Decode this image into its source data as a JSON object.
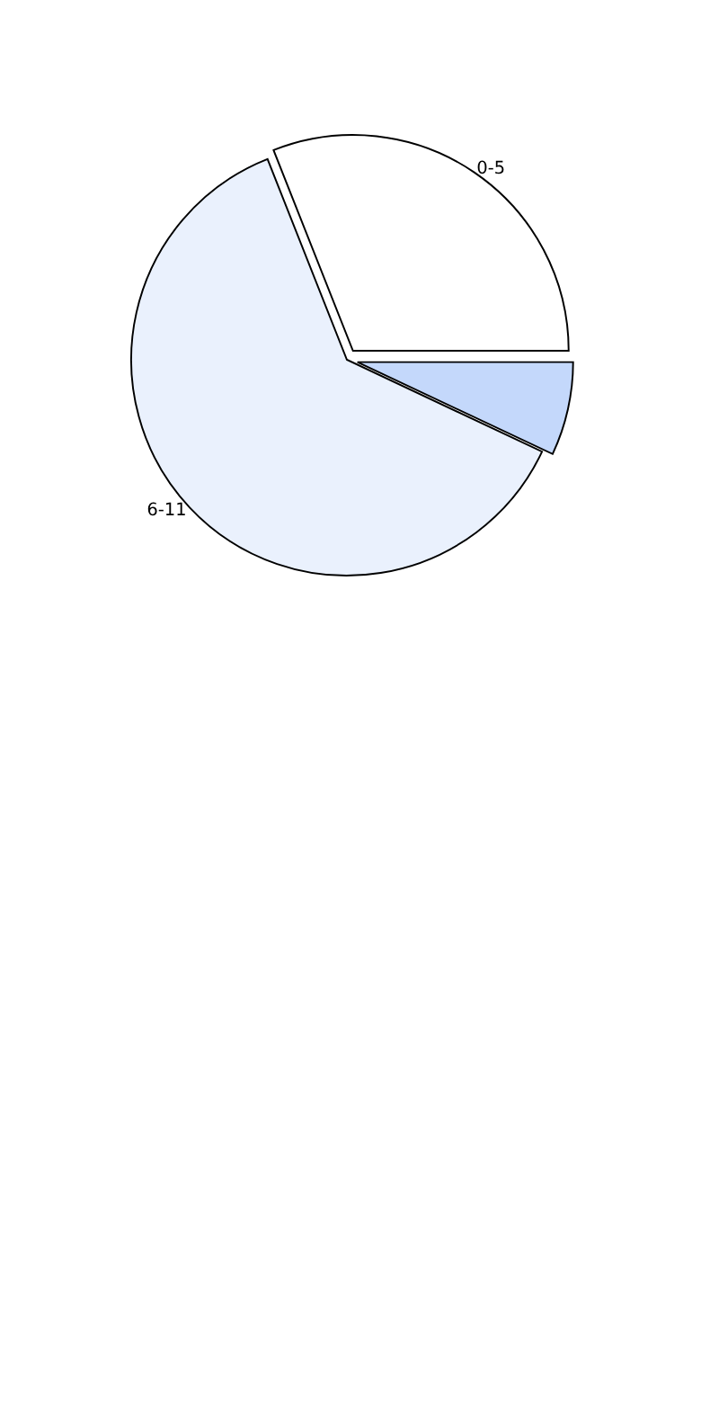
{
  "chart_data": {
    "type": "pie",
    "categories": [
      "0-5",
      "6-11",
      null
    ],
    "values": [
      31,
      62,
      7
    ],
    "colors": [
      "#ffffff",
      "#eaf1fd",
      "#c4d8fb"
    ]
  }
}
